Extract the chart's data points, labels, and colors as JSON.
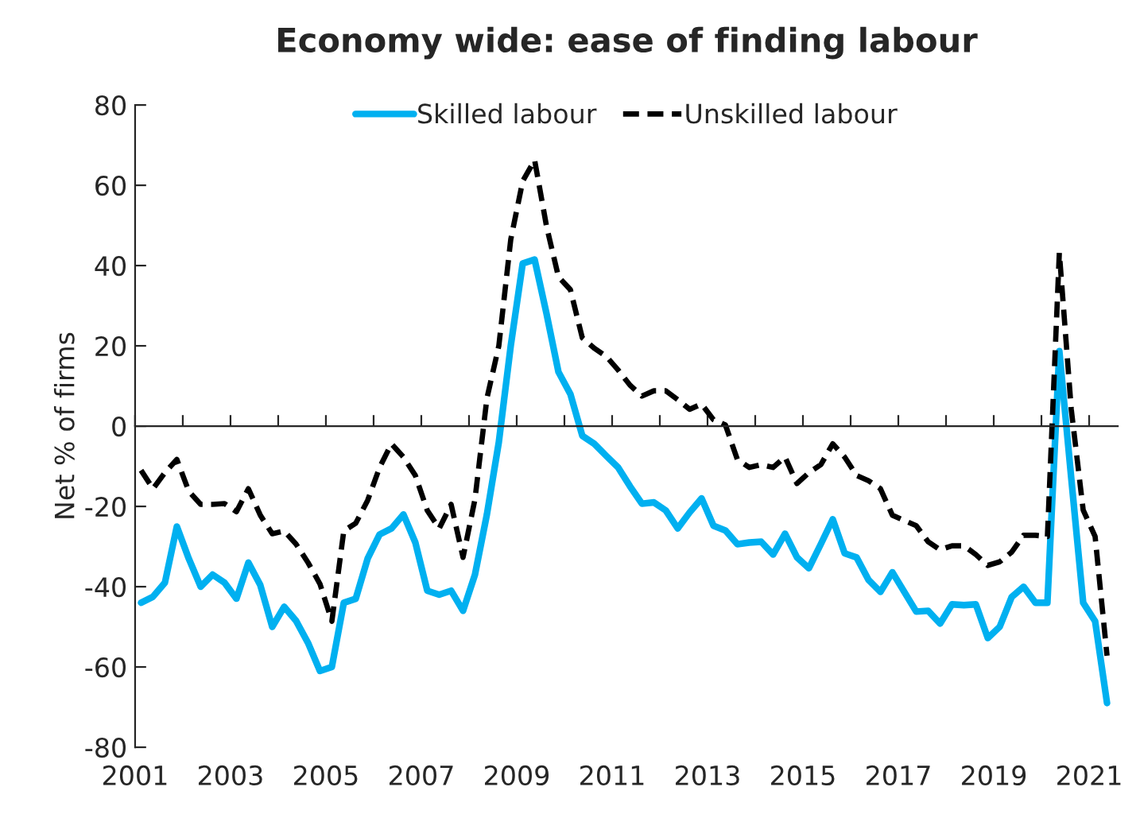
{
  "chart_data": {
    "type": "line",
    "title": "Economy wide: ease of finding labour",
    "ylabel": "Net % of firms",
    "x": [
      2001.125,
      2001.375,
      2001.625,
      2001.875,
      2002.125,
      2002.375,
      2002.625,
      2002.875,
      2003.125,
      2003.375,
      2003.625,
      2003.875,
      2004.125,
      2004.375,
      2004.625,
      2004.875,
      2005.125,
      2005.375,
      2005.625,
      2005.875,
      2006.125,
      2006.375,
      2006.625,
      2006.875,
      2007.125,
      2007.375,
      2007.625,
      2007.875,
      2008.125,
      2008.375,
      2008.625,
      2008.875,
      2009.125,
      2009.375,
      2009.625,
      2009.875,
      2010.125,
      2010.375,
      2010.625,
      2010.875,
      2011.125,
      2011.375,
      2011.625,
      2011.875,
      2012.125,
      2012.375,
      2012.625,
      2012.875,
      2013.125,
      2013.375,
      2013.625,
      2013.875,
      2014.125,
      2014.375,
      2014.625,
      2014.875,
      2015.125,
      2015.375,
      2015.625,
      2015.875,
      2016.125,
      2016.375,
      2016.625,
      2016.875,
      2017.125,
      2017.375,
      2017.625,
      2017.875,
      2018.125,
      2018.375,
      2018.625,
      2018.875,
      2019.125,
      2019.375,
      2019.625,
      2019.875,
      2020.125,
      2020.375,
      2020.625,
      2020.875,
      2021.125,
      2021.375
    ],
    "series": [
      {
        "name": "Skilled labour",
        "color": "#00b0f0",
        "line_style": "solid",
        "values": [
          -44,
          -42.5,
          -39,
          -25,
          -33,
          -40,
          -37,
          -39,
          -43,
          -34,
          -39.6,
          -50,
          -45,
          -48.5,
          -54,
          -61,
          -60,
          -44,
          -43,
          -33,
          -27,
          -25.5,
          -22,
          -29,
          -41,
          -42,
          -41,
          -46,
          -37,
          -22,
          -4,
          20,
          40.5,
          41.5,
          28,
          13.5,
          8,
          -2.4,
          -4.4,
          -7.4,
          -10.3,
          -15,
          -19.3,
          -19,
          -21,
          -25.5,
          -21.5,
          -18,
          -24.8,
          -26,
          -29.4,
          -29,
          -28.8,
          -32,
          -26.8,
          -32.7,
          -35.4,
          -29.4,
          -23.2,
          -31.7,
          -32.7,
          -38.3,
          -41.3,
          -36.4,
          -41.3,
          -46.2,
          -46,
          -49.2,
          -44.4,
          -44.6,
          -44.4,
          -52.8,
          -50,
          -42.6,
          -40,
          -44,
          -44,
          18.7,
          -13,
          -44,
          -48.6,
          -69
        ]
      },
      {
        "name": "Unskilled labour",
        "color": "#000000",
        "line_style": "dashed",
        "values": [
          -11,
          -15.6,
          -11.6,
          -8.3,
          -16.2,
          -19.5,
          -19.5,
          -19.3,
          -21.3,
          -15.6,
          -22.2,
          -26.8,
          -26.1,
          -29.4,
          -34,
          -39.3,
          -48.6,
          -26.1,
          -24.2,
          -18.5,
          -10.3,
          -4.4,
          -7.7,
          -12.3,
          -21,
          -25.5,
          -19.5,
          -32.7,
          -18.2,
          6.9,
          20,
          46.5,
          61,
          66.3,
          49.8,
          37.2,
          34,
          22,
          19.4,
          17.4,
          14,
          10.2,
          7.5,
          8.8,
          8.8,
          6.6,
          4.2,
          5.5,
          1.6,
          0.3,
          -8.3,
          -10.3,
          -9.6,
          -10.3,
          -7.7,
          -14.3,
          -11.6,
          -9.6,
          -4.4,
          -7.7,
          -12.3,
          -13.6,
          -15.6,
          -22.2,
          -23.5,
          -24.8,
          -28.8,
          -30.8,
          -29.8,
          -29.8,
          -32,
          -34.7,
          -33.8,
          -31.4,
          -27.2,
          -27.2,
          -27.5,
          43.2,
          4.2,
          -20.9,
          -27.5,
          -57.2
        ]
      }
    ],
    "xlim": [
      2001,
      2021.6
    ],
    "xticks": [
      {
        "value": 2001,
        "label": "2001"
      },
      {
        "value": 2002,
        "label": null
      },
      {
        "value": 2003,
        "label": "2003"
      },
      {
        "value": 2004,
        "label": null
      },
      {
        "value": 2005,
        "label": "2005"
      },
      {
        "value": 2006,
        "label": null
      },
      {
        "value": 2007,
        "label": "2007"
      },
      {
        "value": 2008,
        "label": null
      },
      {
        "value": 2009,
        "label": "2009"
      },
      {
        "value": 2010,
        "label": null
      },
      {
        "value": 2011,
        "label": "2011"
      },
      {
        "value": 2012,
        "label": null
      },
      {
        "value": 2013,
        "label": "2013"
      },
      {
        "value": 2014,
        "label": null
      },
      {
        "value": 2015,
        "label": "2015"
      },
      {
        "value": 2016,
        "label": null
      },
      {
        "value": 2017,
        "label": "2017"
      },
      {
        "value": 2018,
        "label": null
      },
      {
        "value": 2019,
        "label": "2019"
      },
      {
        "value": 2020,
        "label": null
      },
      {
        "value": 2021,
        "label": "2021"
      }
    ],
    "ylim": [
      -80,
      80
    ],
    "yticks": [
      -80,
      -60,
      -40,
      -20,
      0,
      20,
      40,
      60,
      80
    ],
    "legend": "top",
    "marker": "none"
  }
}
